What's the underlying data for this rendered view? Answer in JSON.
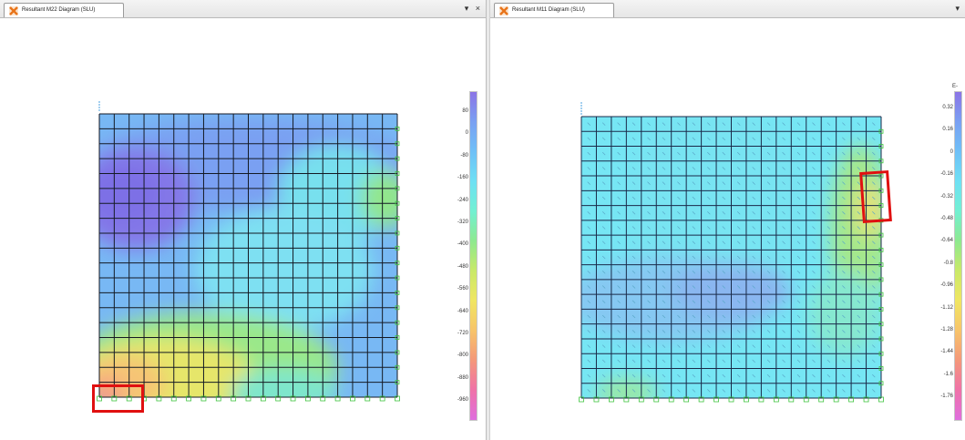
{
  "left_panel": {
    "tab_title": "Resultant M22 Diagram  (SLU)",
    "window_controls": [
      "▾",
      "×"
    ],
    "legend_labels": [
      "80",
      "0",
      "-80",
      "-160",
      "-240",
      "-320",
      "-400",
      "-480",
      "-560",
      "-640",
      "-720",
      "-800",
      "-880",
      "-960"
    ]
  },
  "right_panel": {
    "tab_title": "Resultant M11 Diagram  (SLU)",
    "window_controls": [
      "▾"
    ],
    "legend_header": "E-",
    "legend_labels": [
      "0.32",
      "0.16",
      "0",
      "-0.16",
      "-0.32",
      "-0.48",
      "-0.64",
      "-0.8",
      "-0.96",
      "-1.12",
      "-1.28",
      "-1.44",
      "-1.6",
      "-1.76"
    ]
  },
  "colors": {
    "highlight": "#e01010",
    "grid_line": "#151d2e",
    "support": "#3ec43e",
    "app_icon": "#e8741a"
  },
  "icons": {
    "tab": "app-logo-icon",
    "support": "support-node-icon"
  },
  "mesh": {
    "divisions": 20,
    "rows": 19
  }
}
